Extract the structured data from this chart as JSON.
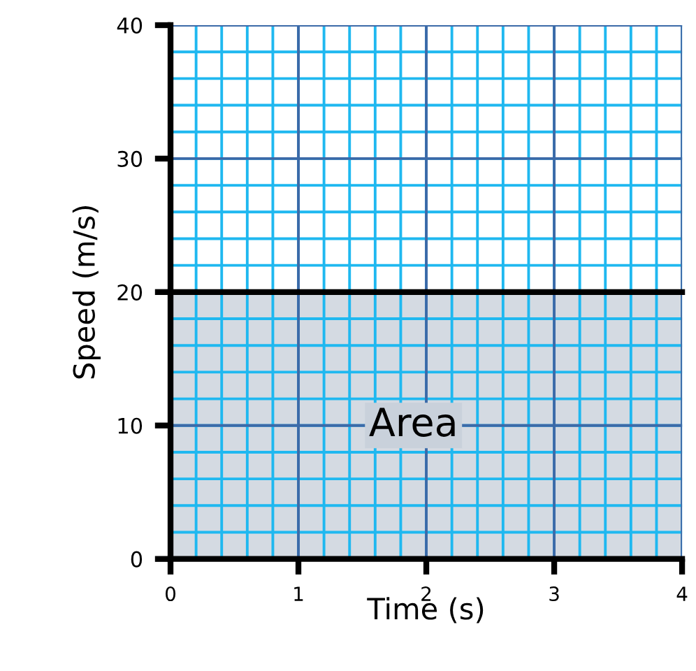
{
  "chart_data": {
    "type": "area",
    "x": [
      0,
      4
    ],
    "values": [
      20,
      20
    ],
    "color": "#c9d1db",
    "xlabel": "Time (s)",
    "ylabel": "Speed (m/s)",
    "xlim": [
      0,
      4
    ],
    "ylim": [
      0,
      40
    ],
    "xticks": [
      0,
      1,
      2,
      3,
      4
    ],
    "yticks": [
      0,
      10,
      20,
      30,
      40
    ],
    "grid": true,
    "annotations": [
      "Area"
    ]
  }
}
